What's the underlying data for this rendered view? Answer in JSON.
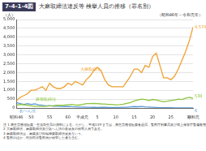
{
  "chart_data": {
    "type": "line",
    "figure_number": "7-4-1-4図",
    "title": "大麻取締法違反等 検挙人員の推移（罪名別）",
    "y_label": "（人）",
    "subtitle": "（昭和46年～令和元年）",
    "categories": [
      "昭和46",
      null,
      null,
      null,
      "50",
      null,
      null,
      null,
      null,
      "55",
      null,
      null,
      null,
      null,
      "60",
      null,
      null,
      null,
      "平成元",
      null,
      null,
      null,
      "5",
      null,
      null,
      null,
      null,
      "10",
      null,
      null,
      null,
      null,
      "15",
      null,
      null,
      null,
      null,
      "20",
      null,
      null,
      null,
      null,
      "25",
      null,
      null,
      null,
      null,
      "30",
      "令和元"
    ],
    "series": [
      {
        "name": "大麻取締法",
        "color": "#f0a030",
        "end_label": "4,570",
        "values": [
          400,
          600,
          700,
          800,
          1000,
          1000,
          1100,
          1200,
          1000,
          1400,
          1200,
          1100,
          1100,
          1200,
          1400,
          1300,
          1500,
          1400,
          1300,
          1600,
          1800,
          2100,
          2300,
          2100,
          1600,
          1300,
          1200,
          1200,
          1200,
          1200,
          1500,
          1800,
          2200,
          2200,
          2000,
          2400,
          2300,
          2900,
          3100,
          2400,
          1700,
          1700,
          1600,
          1800,
          2200,
          2700,
          3200,
          3800,
          4570
        ]
      },
      {
        "name": "麻薬取締法",
        "color": "#8cc43c",
        "end_label": "538",
        "values": [
          150,
          200,
          180,
          150,
          120,
          100,
          100,
          90,
          100,
          120,
          130,
          150,
          150,
          160,
          180,
          200,
          170,
          160,
          200,
          250,
          250,
          260,
          250,
          230,
          220,
          200,
          200,
          180,
          190,
          210,
          260,
          300,
          400,
          450,
          500,
          480,
          420,
          480,
          450,
          400,
          350,
          380,
          420,
          450,
          500,
          480,
          560,
          600,
          538
        ]
      },
      {
        "name": "あへん法",
        "color": "#5b9bd5",
        "end_label": "6",
        "values": [
          300,
          250,
          200,
          250,
          200,
          230,
          180,
          150,
          120,
          130,
          100,
          100,
          90,
          80,
          90,
          70,
          60,
          50,
          50,
          40,
          40,
          35,
          30,
          40,
          35,
          30,
          30,
          25,
          30,
          40,
          40,
          60,
          80,
          70,
          90,
          60,
          50,
          40,
          30,
          20,
          20,
          15,
          15,
          10,
          10,
          8,
          10,
          10,
          6
        ]
      }
    ],
    "ylim": [
      0,
      5000
    ],
    "yticks": [
      0,
      500,
      {
        "value": 1000,
        "label": "1,000"
      },
      {
        "value": 1500,
        "label": "1,500"
      },
      {
        "value": 2000,
        "label": "2,000"
      },
      {
        "value": 2500,
        "label": "2,500"
      },
      {
        "value": 3000,
        "label": "3,000"
      },
      {
        "value": 3500,
        "label": "3,500"
      },
      {
        "value": 4000,
        "label": "4,000"
      },
      {
        "value": 4500,
        "label": "4,500"
      },
      {
        "value": 5000,
        "label": "5,000"
      }
    ],
    "grid": true,
    "notes": [
      "注 1 厚生労働省医薬・生活衛生局の資料による。ただし，平成13年までは，厚生労働省医薬食品局，警察庁刑事局及び海上保安庁警備救難部の資料による。",
      "2 大麻取締法，麻薬取締法及びあへん法の各違反の検挙人員である。",
      "3 麻薬取締法は，麻薬及び向精神薬取締法違反をいう。",
      "4 警察のほか，特別司法警察員が検挙した者を含む。"
    ]
  }
}
